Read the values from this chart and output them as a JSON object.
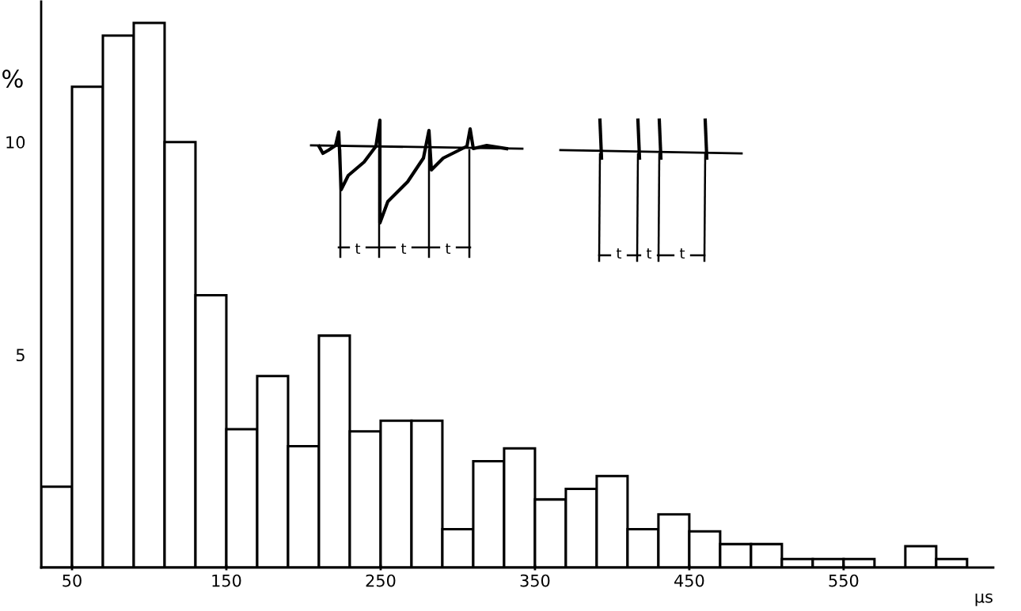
{
  "chart_data": {
    "type": "histogram",
    "ylabel": "%",
    "xlabel": "µs",
    "bins": [
      30,
      50,
      70,
      90,
      110,
      130,
      150,
      170,
      190,
      210,
      230,
      250,
      270,
      290,
      310,
      330,
      350,
      370,
      390,
      410,
      430,
      450,
      470,
      490,
      510,
      530,
      550,
      570,
      590,
      610,
      630
    ],
    "values": [
      1.9,
      11.3,
      12.5,
      12.8,
      10,
      6.4,
      3.25,
      4.5,
      2.85,
      5.45,
      3.2,
      3.45,
      3.45,
      0.9,
      2.5,
      2.8,
      1.6,
      1.85,
      2.15,
      0.9,
      1.25,
      0.85,
      0.55,
      0.55,
      0.2,
      0.2,
      0.2,
      0,
      0.5,
      0.2
    ],
    "color": "#ffffff",
    "xlim": [
      30,
      647
    ],
    "ylim": [
      0,
      13.3
    ],
    "xticks": [
      50,
      150,
      250,
      350,
      450,
      550
    ],
    "yticks": [
      5,
      10
    ],
    "annotations": [
      "t",
      "t",
      "t",
      "t",
      "t",
      "t"
    ],
    "grid": false
  }
}
